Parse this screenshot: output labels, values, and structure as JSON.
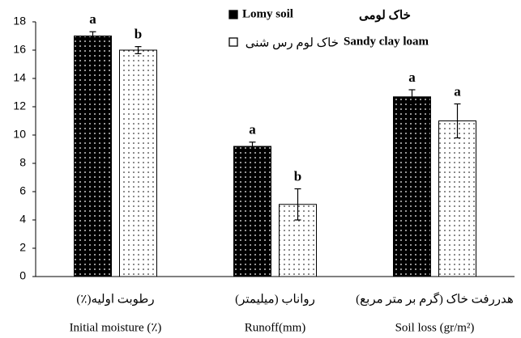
{
  "chart_data": {
    "type": "bar",
    "categories": [
      "Initial moisture (٪)",
      "Runoff(mm)",
      "Soil loss (gr/m²)"
    ],
    "categories_fa": [
      "رطوبت اولیه(٪)",
      "رواناب (میلیمتر)",
      "هدررفت خاک (گرم بر متر مربع)"
    ],
    "series": [
      {
        "name": "Lomy soil",
        "name_fa": "خاک لومی",
        "color": "#000000",
        "values": [
          17.0,
          9.2,
          12.7
        ],
        "errors": [
          0.3,
          0.3,
          0.5
        ],
        "letters": [
          "a",
          "a",
          "a"
        ]
      },
      {
        "name": "Sandy clay loam",
        "name_fa": "خاک لوم رس شنی",
        "color": "#ffffff",
        "values": [
          16.0,
          5.1,
          11.0
        ],
        "errors": [
          0.25,
          1.1,
          1.2
        ],
        "letters": [
          "b",
          "b",
          "a"
        ]
      }
    ],
    "ylim": [
      0,
      18
    ],
    "yticks": [
      0,
      2,
      4,
      6,
      8,
      10,
      12,
      14,
      16,
      18
    ],
    "grid": false
  }
}
